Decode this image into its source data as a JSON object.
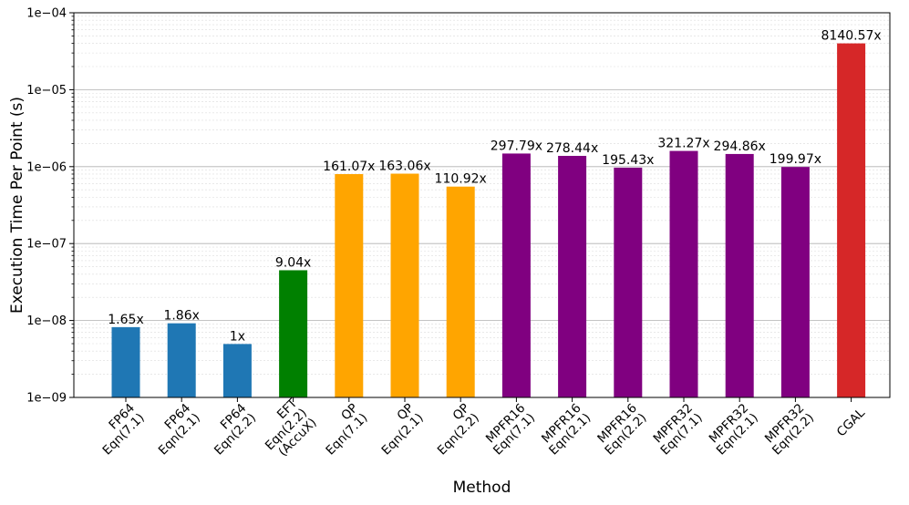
{
  "chart_data": {
    "type": "bar",
    "title": "",
    "xlabel": "Method",
    "ylabel": "Execution Time Per Point (s)",
    "yscale": "log",
    "ylim": [
      1e-09,
      0.0001
    ],
    "yticks": [
      {
        "value": 1e-09,
        "label": "1e−09"
      },
      {
        "value": 1e-08,
        "label": "1e−08"
      },
      {
        "value": 1e-07,
        "label": "1e−07"
      },
      {
        "value": 1e-06,
        "label": "1e−06"
      },
      {
        "value": 1e-05,
        "label": "1e−05"
      },
      {
        "value": 0.0001,
        "label": "1e−04"
      }
    ],
    "grid": true,
    "categories": [
      [
        "FP64",
        "Eqn(7.1)"
      ],
      [
        "FP64",
        "Eqn(2.1)"
      ],
      [
        "FP64",
        "Eqn(2.2)"
      ],
      [
        "EFT",
        "Eqn(2.2)",
        "(AccuX)"
      ],
      [
        "QP",
        "Eqn(7.1)"
      ],
      [
        "QP",
        "Eqn(2.1)"
      ],
      [
        "QP",
        "Eqn(2.2)"
      ],
      [
        "MPFR16",
        "Eqn(7.1)"
      ],
      [
        "MPFR16",
        "Eqn(2.1)"
      ],
      [
        "MPFR16",
        "Eqn(2.2)"
      ],
      [
        "MPFR32",
        "Eqn(7.1)"
      ],
      [
        "MPFR32",
        "Eqn(2.1)"
      ],
      [
        "MPFR32",
        "Eqn(2.2)"
      ],
      [
        "CGAL"
      ]
    ],
    "values": [
      8.2e-09,
      9.2e-09,
      4.95e-09,
      4.5e-08,
      8e-07,
      8.1e-07,
      5.5e-07,
      1.48e-06,
      1.38e-06,
      9.7e-07,
      1.6e-06,
      1.46e-06,
      9.9e-07,
      4e-05
    ],
    "bar_labels": [
      "1.65x",
      "1.86x",
      "1x",
      "9.04x",
      "161.07x",
      "163.06x",
      "110.92x",
      "297.79x",
      "278.44x",
      "195.43x",
      "321.27x",
      "294.86x",
      "199.97x",
      "8140.57x"
    ],
    "colors": [
      "#1f77b4",
      "#1f77b4",
      "#1f77b4",
      "#008000",
      "#ffa500",
      "#ffa500",
      "#ffa500",
      "#800080",
      "#800080",
      "#800080",
      "#800080",
      "#800080",
      "#800080",
      "#d62728"
    ]
  }
}
